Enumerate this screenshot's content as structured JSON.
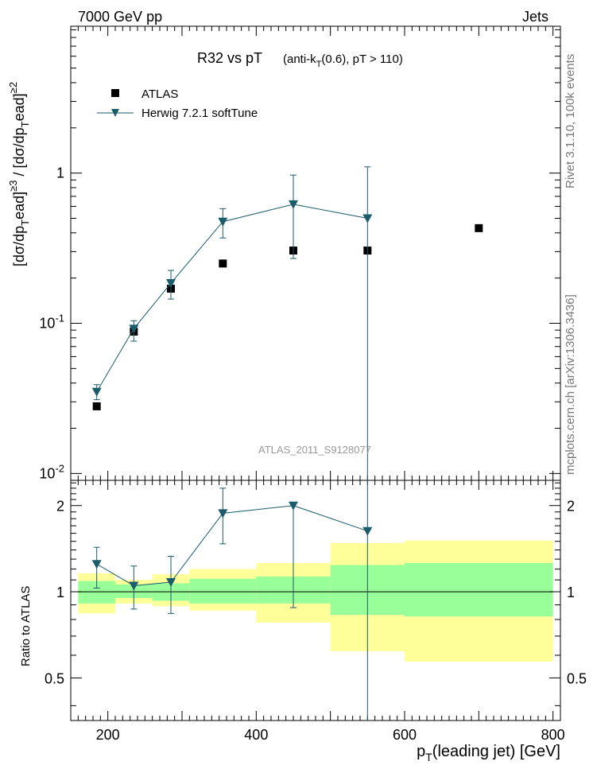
{
  "header": {
    "left": "7000 GeV pp",
    "right": "Jets"
  },
  "side_labels": {
    "rivet": "Rivet 3.1.10,  100k events",
    "mcplots": "mcplots.cern.ch [arXiv:1306.3436]"
  },
  "watermark": "ATLAS_2011_S9128077",
  "chart_data": [
    {
      "type": "scatter",
      "title": "R32 vs pT",
      "title_note": "(anti-k_T(0.6), pT > 110)",
      "xlabel": "p_T(leading jet) [GeV]",
      "ylabel": "[dσ/dp_T^lead]^{≥3} / [dσ/dp_T^lead]^{≥2}",
      "yscale": "log",
      "xlim": [
        150,
        810
      ],
      "ylim": [
        0.009,
        9.5
      ],
      "x_ticks": [
        "200",
        "400",
        "600",
        "800"
      ],
      "y_tick_labels": [
        "10^{-2}",
        "10^{-1}",
        "1"
      ],
      "legend_position": "top-left",
      "series": [
        {
          "name": "ATLAS",
          "marker": "square",
          "color": "#000000",
          "points": [
            {
              "x": 185,
              "y": 0.028
            },
            {
              "x": 235,
              "y": 0.088
            },
            {
              "x": 285,
              "y": 0.17
            },
            {
              "x": 355,
              "y": 0.25
            },
            {
              "x": 450,
              "y": 0.305
            },
            {
              "x": 550,
              "y": 0.305
            },
            {
              "x": 700,
              "y": 0.43
            }
          ]
        },
        {
          "name": "Herwig 7.2.1 softTune",
          "marker": "triangle-down",
          "color": "#1b5b6b",
          "points": [
            {
              "x": 185,
              "y": 0.035,
              "ylow": 0.031,
              "yhigh": 0.039
            },
            {
              "x": 235,
              "y": 0.092,
              "ylow": 0.076,
              "yhigh": 0.104
            },
            {
              "x": 285,
              "y": 0.185,
              "ylow": 0.145,
              "yhigh": 0.225
            },
            {
              "x": 355,
              "y": 0.475,
              "ylow": 0.37,
              "yhigh": 0.58
            },
            {
              "x": 450,
              "y": 0.62,
              "ylow": 0.27,
              "yhigh": 0.97
            },
            {
              "x": 550,
              "y": 0.5,
              "ylow": 0.009,
              "yhigh": 1.1
            }
          ]
        }
      ]
    },
    {
      "type": "line",
      "ylabel": "Ratio to ATLAS",
      "yscale": "log",
      "xlim": [
        150,
        810
      ],
      "ylim": [
        0.355,
        2.45
      ],
      "x_ticks": [
        "200",
        "400",
        "600",
        "800"
      ],
      "y_ticks": [
        "0.5",
        "1",
        "2"
      ],
      "bands": [
        {
          "x0": 160,
          "x1": 210,
          "green": [
            0.91,
            1.09
          ],
          "yellow": [
            0.84,
            1.16
          ]
        },
        {
          "x0": 210,
          "x1": 260,
          "green": [
            0.95,
            1.06
          ],
          "yellow": [
            0.91,
            1.1
          ]
        },
        {
          "x0": 260,
          "x1": 310,
          "green": [
            0.93,
            1.07
          ],
          "yellow": [
            0.89,
            1.15
          ]
        },
        {
          "x0": 310,
          "x1": 400,
          "green": [
            0.91,
            1.11
          ],
          "yellow": [
            0.86,
            1.2
          ]
        },
        {
          "x0": 400,
          "x1": 500,
          "green": [
            0.91,
            1.13
          ],
          "yellow": [
            0.78,
            1.26
          ]
        },
        {
          "x0": 500,
          "x1": 600,
          "green": [
            0.83,
            1.24
          ],
          "yellow": [
            0.62,
            1.48
          ]
        },
        {
          "x0": 600,
          "x1": 800,
          "green": [
            0.82,
            1.26
          ],
          "yellow": [
            0.57,
            1.51
          ]
        }
      ],
      "series": [
        {
          "name": "Herwig 7.2.1 softTune",
          "color": "#1b5b6b",
          "points": [
            {
              "x": 185,
              "y": 1.25,
              "ylow": 1.03,
              "yhigh": 1.43
            },
            {
              "x": 235,
              "y": 1.05,
              "ylow": 0.87,
              "yhigh": 1.23
            },
            {
              "x": 285,
              "y": 1.08,
              "ylow": 0.84,
              "yhigh": 1.33
            },
            {
              "x": 355,
              "y": 1.88,
              "ylow": 1.47,
              "yhigh": 2.3
            },
            {
              "x": 450,
              "y": 2.0,
              "ylow": 0.88,
              "yhigh": 2.05
            },
            {
              "x": 550,
              "y": 1.63,
              "ylow": 0.355,
              "yhigh": 2.45
            }
          ]
        }
      ]
    }
  ]
}
